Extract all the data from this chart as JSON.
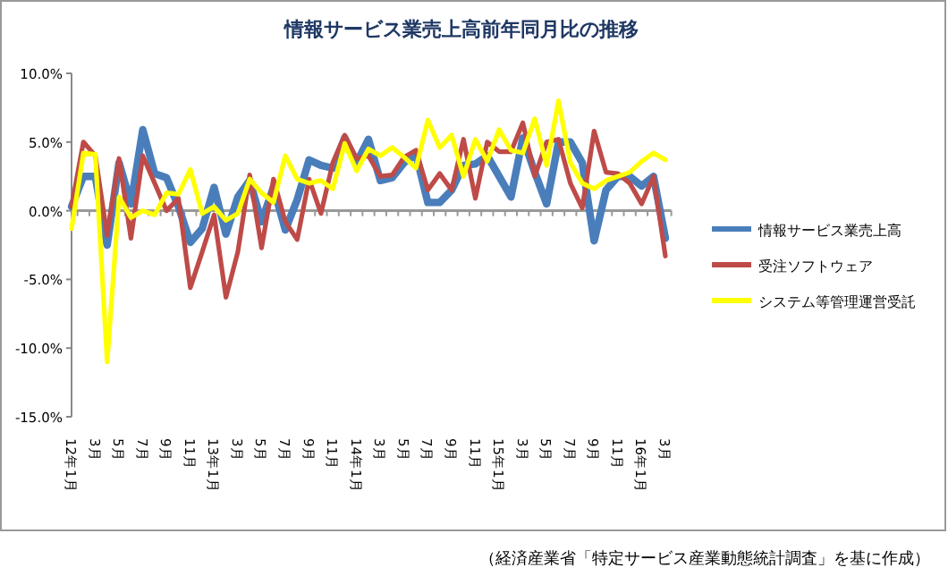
{
  "chart_data": {
    "type": "line",
    "title": "情報サービス業売上高前年同月比の推移",
    "categories": [
      "12年1月",
      null,
      "3月",
      null,
      "5月",
      null,
      "7月",
      null,
      "9月",
      null,
      "11月",
      null,
      "13年1月",
      null,
      "3月",
      null,
      "5月",
      null,
      "7月",
      null,
      "9月",
      null,
      "11月",
      null,
      "14年1月",
      null,
      "3月",
      null,
      "5月",
      null,
      "7月",
      null,
      "9月",
      null,
      "11月",
      null,
      "15年1月",
      null,
      "3月",
      null,
      "5月",
      null,
      "7月",
      null,
      "9月",
      null,
      "11月",
      null,
      "16年1月",
      null,
      "3月"
    ],
    "series": [
      {
        "name": "情報サービス業売上高",
        "color": "#4a7ebb",
        "values": [
          0.3,
          2.5,
          2.5,
          -2.5,
          3.5,
          0.5,
          5.9,
          2.7,
          2.4,
          0.3,
          -2.3,
          -1.3,
          1.7,
          -1.7,
          1.0,
          2.2,
          -0.8,
          1.7,
          -1.4,
          0.8,
          3.7,
          3.3,
          3.1,
          5.3,
          3.5,
          5.2,
          2.2,
          2.4,
          3.5,
          4.1,
          0.6,
          0.6,
          1.5,
          3.3,
          3.4,
          4.0,
          2.5,
          1.0,
          5.3,
          2.8,
          0.5,
          5.0,
          5.0,
          3.5,
          -2.2,
          1.5,
          2.5,
          2.5,
          1.8,
          2.5,
          -2.0
        ]
      },
      {
        "name": "受注ソフトウェア",
        "color": "#be4b48",
        "values": [
          0.3,
          5.0,
          4.0,
          -1.8,
          3.8,
          -2.0,
          4.0,
          2.0,
          0.0,
          0.9,
          -5.6,
          -3.0,
          -0.3,
          -6.3,
          -3.0,
          2.6,
          -2.7,
          2.3,
          -0.8,
          -2.1,
          2.3,
          -0.2,
          3.5,
          5.5,
          3.8,
          4.0,
          2.5,
          2.6,
          3.9,
          4.4,
          1.5,
          2.7,
          1.5,
          5.2,
          0.9,
          5.0,
          4.3,
          4.3,
          6.4,
          2.5,
          5.0,
          5.2,
          2.0,
          0.2,
          5.8,
          2.8,
          2.7,
          2.0,
          0.5,
          2.5,
          -3.3
        ]
      },
      {
        "name": "システム等管理運営受託",
        "color": "#ffff00",
        "values": [
          -1.3,
          4.2,
          4.1,
          -11.0,
          1.0,
          -0.5,
          0.0,
          -0.3,
          1.3,
          1.2,
          3.0,
          -0.2,
          0.3,
          -0.7,
          -0.2,
          2.3,
          1.3,
          0.6,
          4.0,
          2.3,
          2.0,
          2.2,
          1.6,
          4.9,
          2.9,
          4.5,
          4.0,
          4.6,
          3.9,
          3.1,
          6.6,
          4.6,
          5.5,
          2.5,
          5.2,
          3.6,
          5.9,
          4.4,
          4.2,
          6.7,
          3.3,
          8.0,
          3.5,
          2.0,
          1.6,
          2.2,
          2.5,
          2.8,
          3.6,
          4.2,
          3.7
        ]
      }
    ],
    "ylim": [
      -15,
      10
    ],
    "yticks": [
      {
        "value": -15,
        "label": "-15.0%"
      },
      {
        "value": -10,
        "label": "-10.0%"
      },
      {
        "value": -5,
        "label": "-5.0%"
      },
      {
        "value": 0,
        "label": "0.0%"
      },
      {
        "value": 5,
        "label": "5.0%"
      },
      {
        "value": 10,
        "label": "10.0%"
      }
    ],
    "legend": "right",
    "annotations": [
      "（経済産業省「特定サービス産業動態統計調査」を基に作成）"
    ]
  }
}
